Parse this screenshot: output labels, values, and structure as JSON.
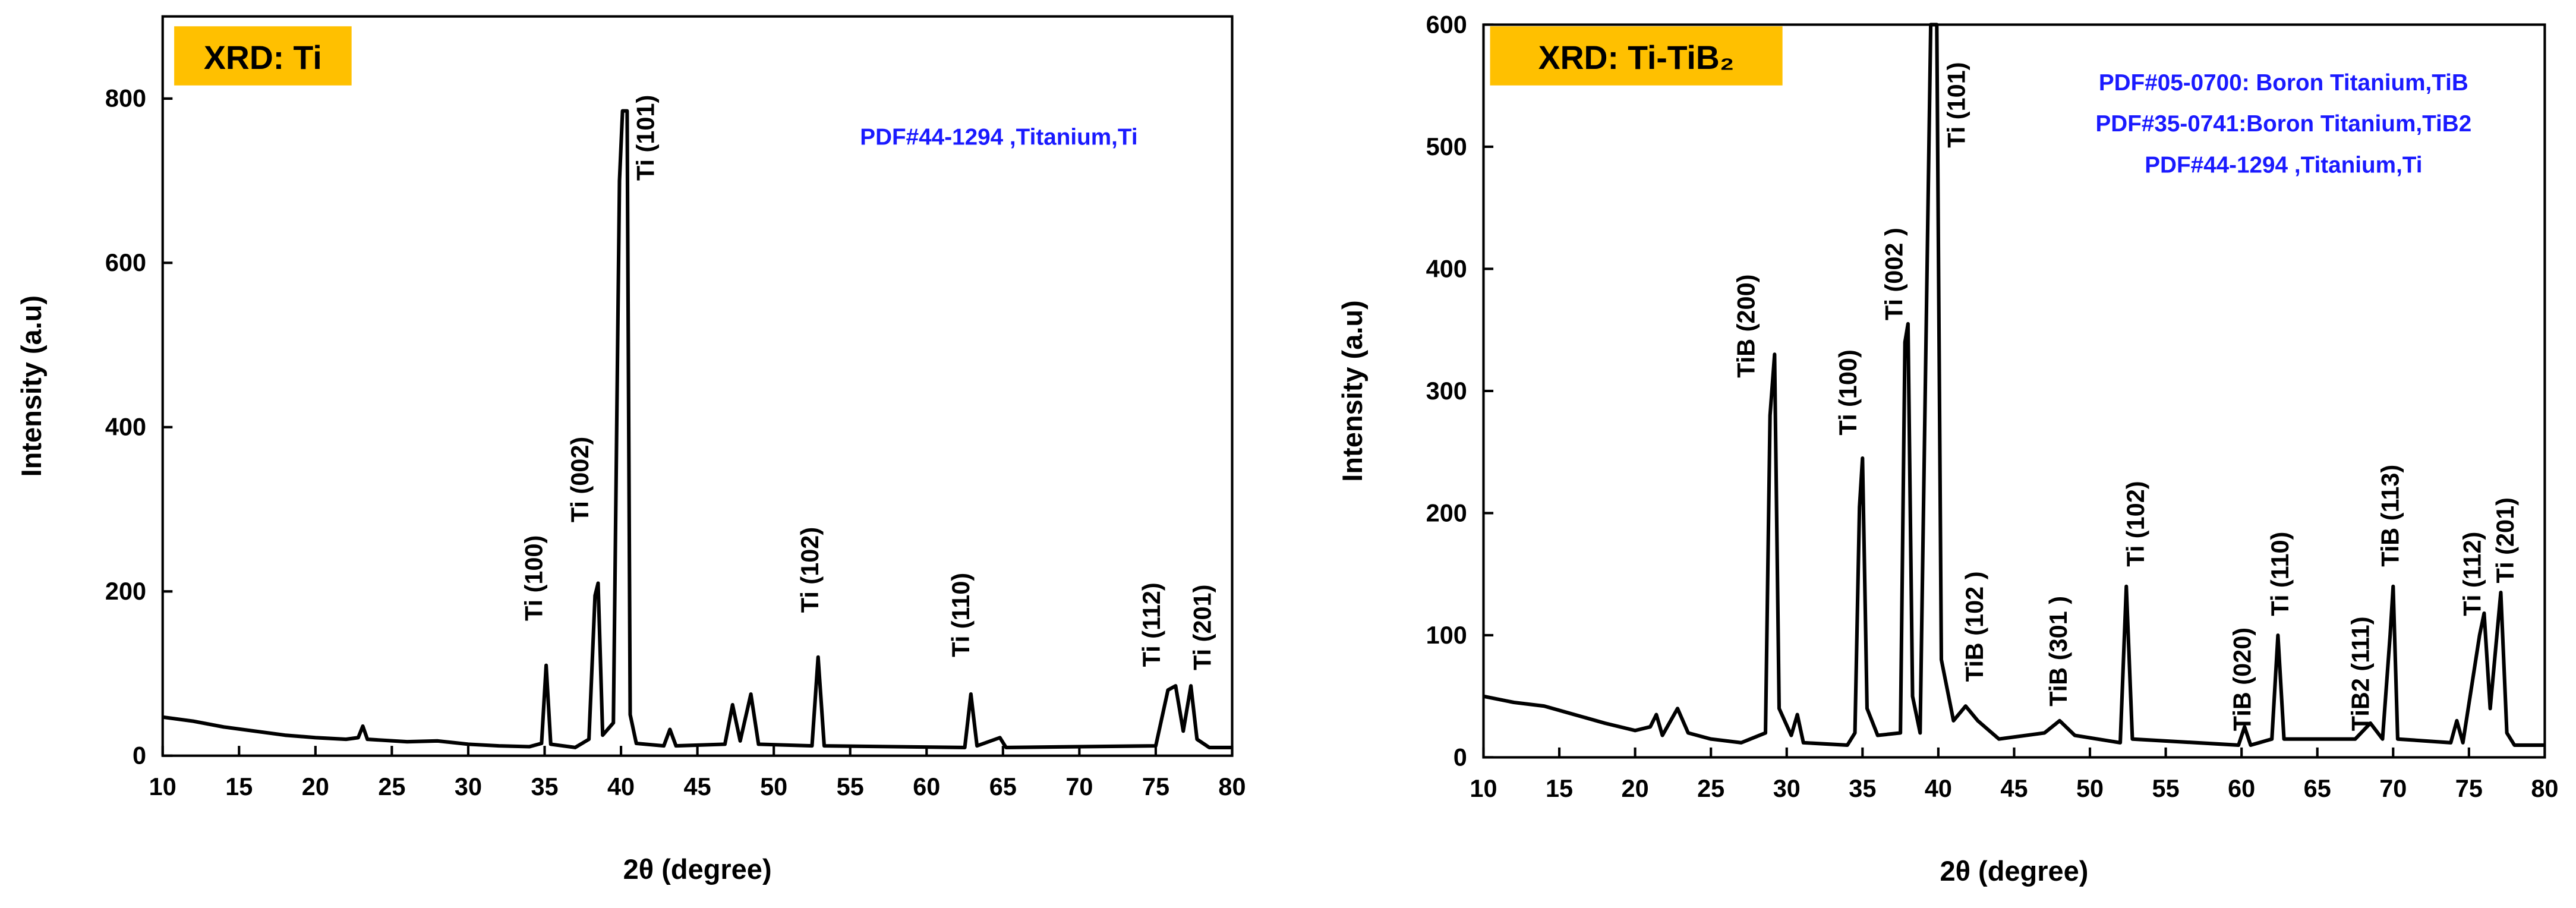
{
  "chart_data": [
    {
      "type": "line",
      "title": "XRD: Ti",
      "xlabel": "2θ (degree)",
      "ylabel": "Intensity (a.u)",
      "notes": [
        "PDF#44-1294  ,Titanium,Ti"
      ],
      "annotations": [
        "Ti (100)",
        "Ti (002)",
        "Ti (101)",
        "Ti (102)",
        "Ti (110)",
        "Ti (112)",
        "Ti (201)"
      ],
      "xlim": [
        10,
        80
      ],
      "ylim": [
        0,
        900
      ],
      "xticks": [
        10,
        15,
        20,
        25,
        30,
        35,
        40,
        45,
        50,
        55,
        60,
        65,
        70,
        75,
        80
      ],
      "yticks": [
        0,
        200,
        400,
        600,
        800
      ],
      "color": "#000000",
      "x": [
        10,
        12,
        14,
        16,
        18,
        20,
        22,
        22.8,
        23.1,
        23.4,
        26,
        28,
        30,
        32,
        34,
        34.8,
        35.1,
        35.4,
        37,
        37.9,
        38.3,
        38.5,
        38.8,
        39.5,
        39.9,
        40.1,
        40.4,
        40.6,
        41,
        42.8,
        43.2,
        43.6,
        46.8,
        47.3,
        47.8,
        48.5,
        49,
        52.5,
        52.9,
        53.3,
        62.5,
        62.9,
        63.3,
        64.8,
        65.2,
        75,
        75.8,
        76.3,
        76.8,
        77.3,
        77.7,
        78.5,
        80
      ],
      "values": [
        47,
        42,
        35,
        30,
        25,
        22,
        20,
        22,
        36,
        20,
        17,
        18,
        14,
        12,
        11,
        15,
        110,
        14,
        10,
        20,
        195,
        210,
        25,
        40,
        700,
        785,
        785,
        50,
        15,
        12,
        32,
        12,
        14,
        62,
        18,
        75,
        14,
        12,
        120,
        12,
        10,
        75,
        12,
        22,
        10,
        12,
        80,
        85,
        30,
        85,
        20,
        10,
        10
      ]
    },
    {
      "type": "line",
      "title": "XRD: Ti-TiB₂",
      "xlabel": "2θ (degree)",
      "ylabel": "Intensity (a.u)",
      "notes": [
        "PDF#05-0700: Boron Titanium,TiB",
        "PDF#35-0741:Boron Titanium,TiB2",
        "PDF#44-1294  ,Titanium,Ti"
      ],
      "annotations": [
        "TiB (200)",
        "Ti (100)",
        "Ti (002 )",
        "Ti (101)",
        "TiB (102 )",
        "TiB (301 )",
        "Ti (102)",
        "TiB (020)",
        "Ti (110)",
        "TiB2 (111)",
        "TiB (113)",
        "Ti (112)",
        "Ti (201)"
      ],
      "xlim": [
        10,
        80
      ],
      "ylim": [
        0,
        600
      ],
      "xticks": [
        10,
        15,
        20,
        25,
        30,
        35,
        40,
        45,
        50,
        55,
        60,
        65,
        70,
        75,
        80
      ],
      "yticks": [
        0,
        100,
        200,
        300,
        400,
        500,
        600
      ],
      "color": "#000000",
      "x": [
        10,
        12,
        14,
        16,
        18,
        20,
        21,
        21.4,
        21.8,
        22.8,
        23.5,
        25,
        27,
        28.6,
        28.9,
        29.2,
        29.5,
        30.3,
        30.7,
        31.1,
        34,
        34.5,
        34.8,
        35,
        35.3,
        36,
        37.5,
        37.8,
        38,
        38.3,
        38.8,
        39.5,
        39.9,
        40.2,
        41,
        41.8,
        42.6,
        44,
        47,
        48,
        49,
        52,
        52.4,
        52.8,
        59.8,
        60.2,
        60.6,
        62,
        62.4,
        62.8,
        67.5,
        68.5,
        69.3,
        69.8,
        70,
        70.3,
        73.8,
        74.2,
        74.6,
        75.7,
        76,
        76.4,
        77.1,
        77.5,
        78,
        80
      ],
      "values": [
        50,
        45,
        42,
        35,
        28,
        22,
        25,
        35,
        18,
        40,
        20,
        15,
        12,
        20,
        280,
        330,
        40,
        18,
        35,
        12,
        10,
        20,
        205,
        245,
        40,
        18,
        20,
        340,
        355,
        50,
        20,
        600,
        600,
        80,
        30,
        42,
        30,
        15,
        20,
        30,
        18,
        12,
        140,
        15,
        10,
        25,
        10,
        15,
        100,
        15,
        15,
        28,
        15,
        100,
        140,
        15,
        12,
        30,
        12,
        100,
        118,
        40,
        135,
        20,
        10,
        10
      ]
    }
  ]
}
